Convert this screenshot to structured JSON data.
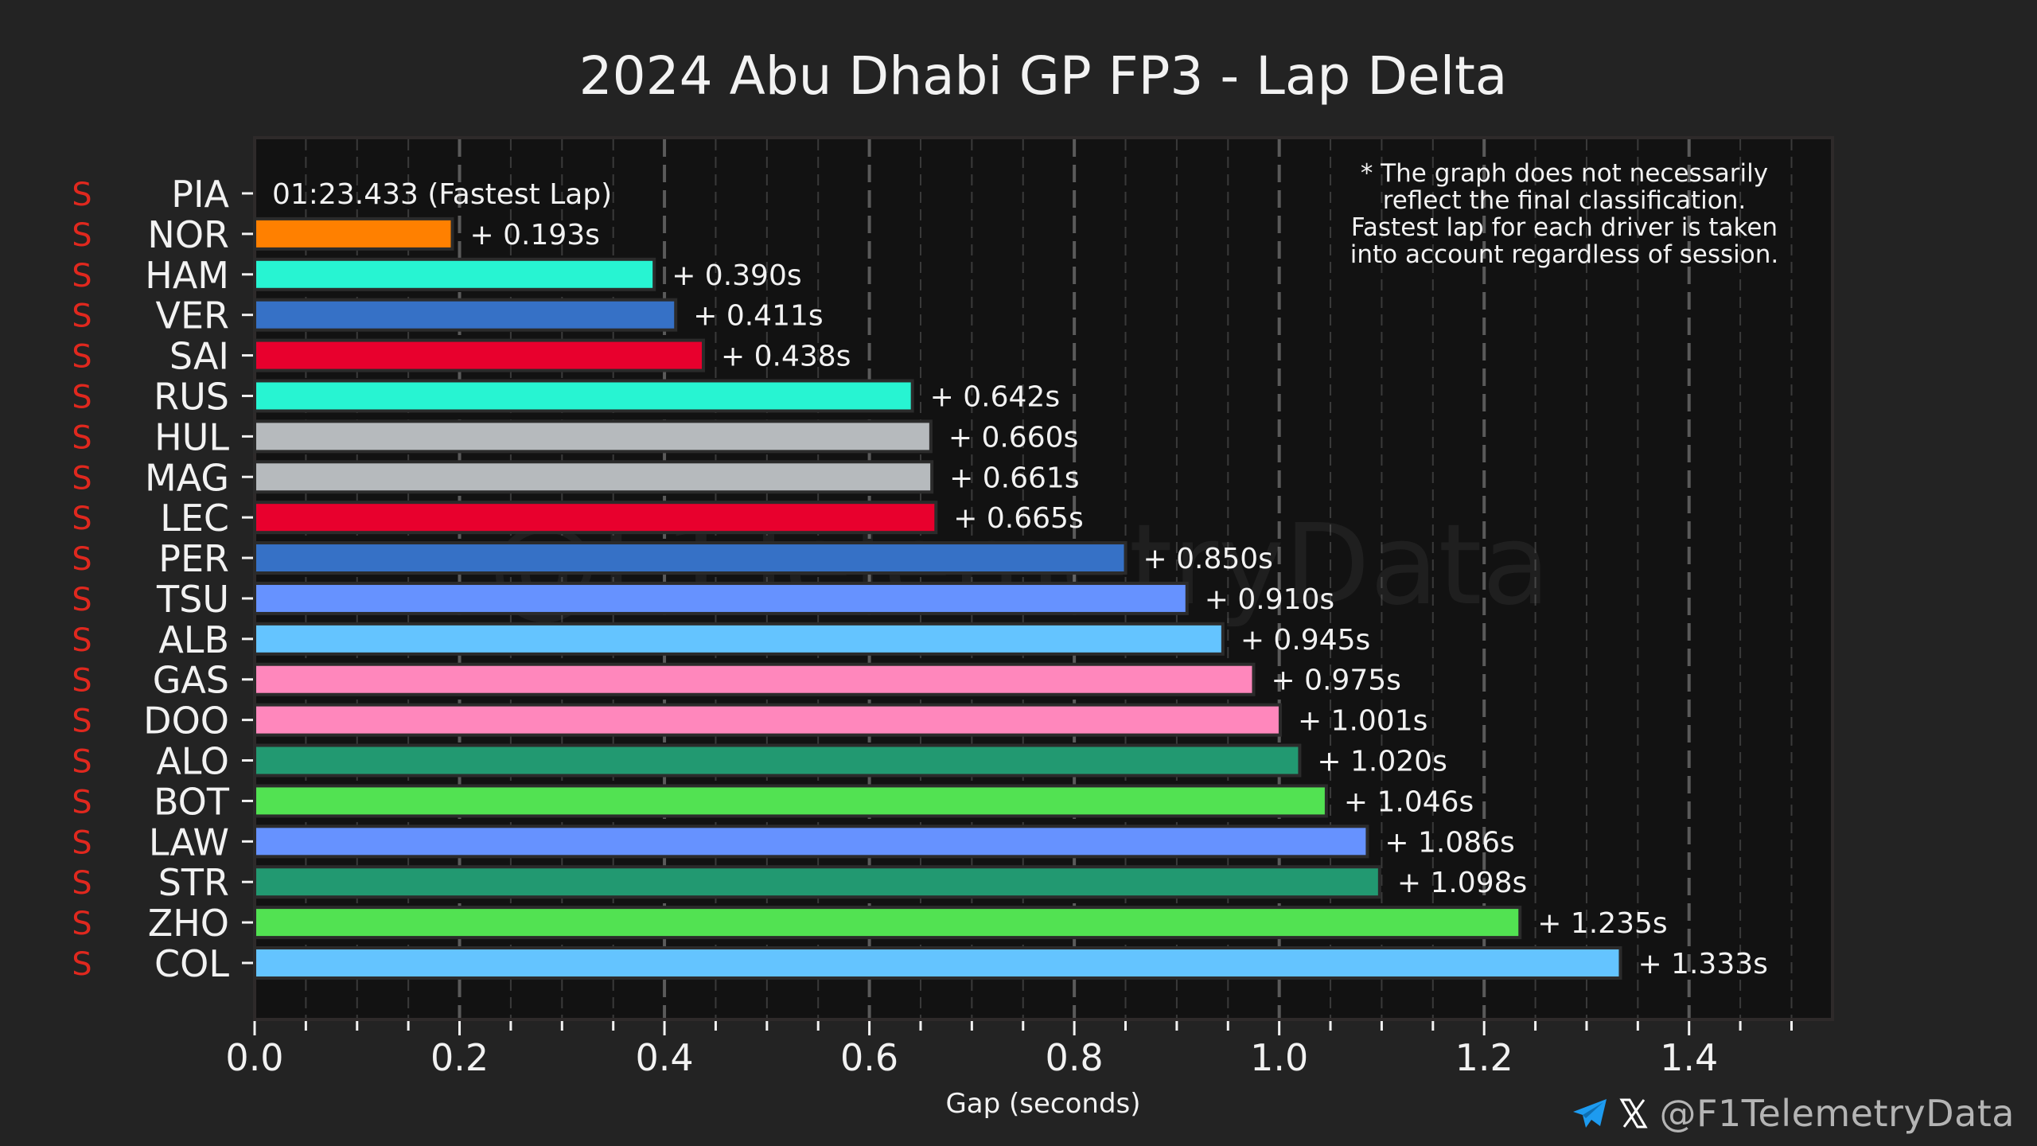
{
  "chart_data": {
    "type": "bar",
    "orientation": "horizontal",
    "title": "2024 Abu Dhabi GP FP3 - Lap Delta",
    "xlabel": "Gap (seconds)",
    "ylabel": "",
    "xlim": [
      0,
      1.54
    ],
    "xticks": [
      0.0,
      0.2,
      0.4,
      0.6,
      0.8,
      1.0,
      1.2,
      1.4
    ],
    "xtick_labels": [
      "0.0",
      "0.2",
      "0.4",
      "0.6",
      "0.8",
      "1.0",
      "1.2",
      "1.4"
    ],
    "minor_tick_step": 0.05,
    "grid": true,
    "fastest_lap_label": "01:23.433 (Fastest Lap)",
    "note": [
      "* The graph does not necessarily",
      "reflect the final classification.",
      "Fastest lap for each driver is taken",
      "into account regardless of session."
    ],
    "note_placement": "top-right",
    "watermark": "@F1TelemetryData",
    "drivers": [
      {
        "code": "PIA",
        "tyre": "S",
        "gap": 0.0,
        "label": "",
        "color": "#FF8000"
      },
      {
        "code": "NOR",
        "tyre": "S",
        "gap": 0.193,
        "label": "+ 0.193s",
        "color": "#FF8000"
      },
      {
        "code": "HAM",
        "tyre": "S",
        "gap": 0.39,
        "label": "+ 0.390s",
        "color": "#27F4D2"
      },
      {
        "code": "VER",
        "tyre": "S",
        "gap": 0.411,
        "label": "+ 0.411s",
        "color": "#3671C6"
      },
      {
        "code": "SAI",
        "tyre": "S",
        "gap": 0.438,
        "label": "+ 0.438s",
        "color": "#E8002D"
      },
      {
        "code": "RUS",
        "tyre": "S",
        "gap": 0.642,
        "label": "+ 0.642s",
        "color": "#27F4D2"
      },
      {
        "code": "HUL",
        "tyre": "S",
        "gap": 0.66,
        "label": "+ 0.660s",
        "color": "#B6BABD"
      },
      {
        "code": "MAG",
        "tyre": "S",
        "gap": 0.661,
        "label": "+ 0.661s",
        "color": "#B6BABD"
      },
      {
        "code": "LEC",
        "tyre": "S",
        "gap": 0.665,
        "label": "+ 0.665s",
        "color": "#E8002D"
      },
      {
        "code": "PER",
        "tyre": "S",
        "gap": 0.85,
        "label": "+ 0.850s",
        "color": "#3671C6"
      },
      {
        "code": "TSU",
        "tyre": "S",
        "gap": 0.91,
        "label": "+ 0.910s",
        "color": "#6692FF"
      },
      {
        "code": "ALB",
        "tyre": "S",
        "gap": 0.945,
        "label": "+ 0.945s",
        "color": "#64C4FF"
      },
      {
        "code": "GAS",
        "tyre": "S",
        "gap": 0.975,
        "label": "+ 0.975s",
        "color": "#FF87BC"
      },
      {
        "code": "DOO",
        "tyre": "S",
        "gap": 1.001,
        "label": "+ 1.001s",
        "color": "#FF87BC"
      },
      {
        "code": "ALO",
        "tyre": "S",
        "gap": 1.02,
        "label": "+ 1.020s",
        "color": "#229971"
      },
      {
        "code": "BOT",
        "tyre": "S",
        "gap": 1.046,
        "label": "+ 1.046s",
        "color": "#52E252"
      },
      {
        "code": "LAW",
        "tyre": "S",
        "gap": 1.086,
        "label": "+ 1.086s",
        "color": "#6692FF"
      },
      {
        "code": "STR",
        "tyre": "S",
        "gap": 1.098,
        "label": "+ 1.098s",
        "color": "#229971"
      },
      {
        "code": "ZHO",
        "tyre": "S",
        "gap": 1.235,
        "label": "+ 1.235s",
        "color": "#52E252"
      },
      {
        "code": "COL",
        "tyre": "S",
        "gap": 1.333,
        "label": "+ 1.333s",
        "color": "#64C4FF"
      }
    ],
    "categories": [
      "PIA",
      "NOR",
      "HAM",
      "VER",
      "SAI",
      "RUS",
      "HUL",
      "MAG",
      "LEC",
      "PER",
      "TSU",
      "ALB",
      "GAS",
      "DOO",
      "ALO",
      "BOT",
      "LAW",
      "STR",
      "ZHO",
      "COL"
    ],
    "values": [
      0.0,
      0.193,
      0.39,
      0.411,
      0.438,
      0.642,
      0.66,
      0.661,
      0.665,
      0.85,
      0.91,
      0.945,
      0.975,
      1.001,
      1.02,
      1.046,
      1.086,
      1.098,
      1.235,
      1.333
    ]
  },
  "colors": {
    "background": "#232323",
    "plot_background": "#121212",
    "text": "#f2f2f2",
    "tyre_soft": "#e0281e",
    "grid_major": "#5a5a5a",
    "grid_minor": "#3a3a3a",
    "telegram": "#1d9bf0",
    "handle": "#b4b4b4"
  },
  "footer": {
    "telegram_icon": "telegram-icon",
    "x_icon": "x-logo-icon",
    "handle": "@F1TelemetryData"
  }
}
